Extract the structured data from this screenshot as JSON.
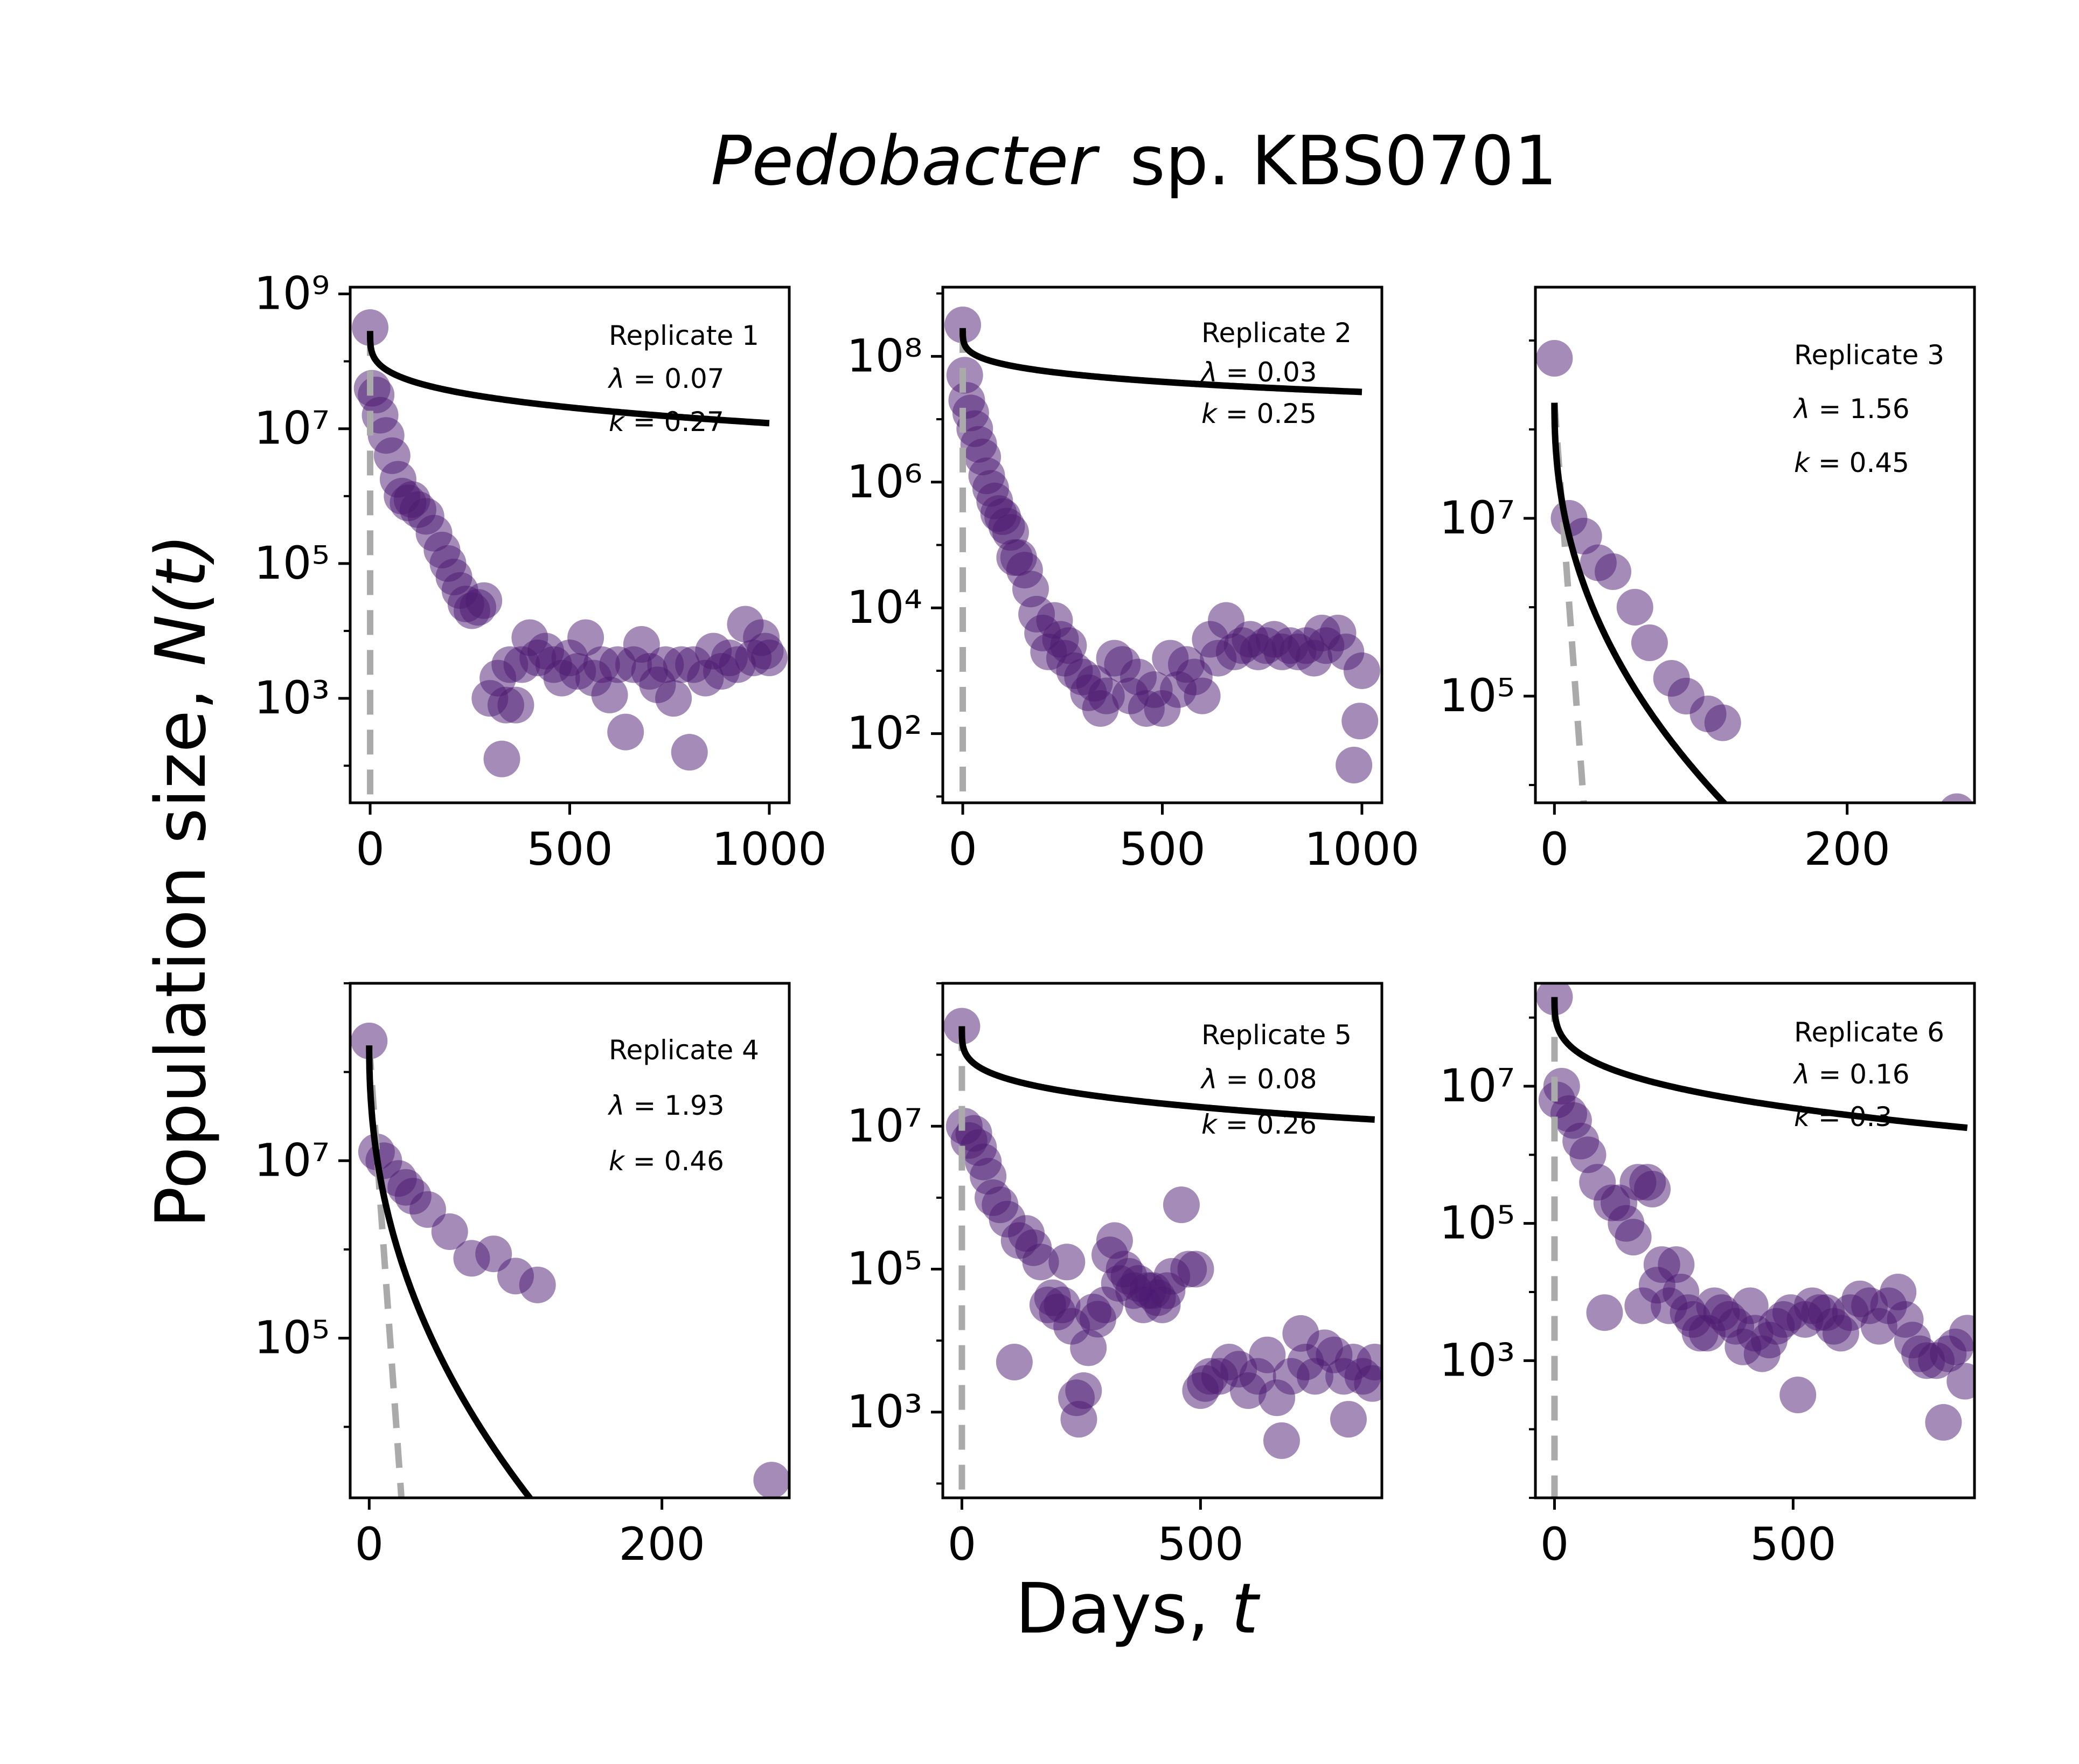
{
  "figure": {
    "title_italic": "Pedobacter",
    "title_rest": "sp. KBS0701",
    "ylabel_text": "Population size, ",
    "ylabel_var": "N(t)",
    "xlabel_text": "Days, ",
    "xlabel_var": "t"
  },
  "colors": {
    "points": "#4b1a72",
    "fit": "#000000",
    "expected": "#aaaaaa",
    "axes": "#000000"
  },
  "chart_data": [
    {
      "type": "scatter",
      "replicate": "Replicate 1",
      "lambda": "0.07",
      "k": "0.27",
      "xlim": [
        -50,
        1050
      ],
      "ylog": true,
      "ylim_log10": [
        1.45,
        9.1
      ],
      "xticks": [
        0,
        500,
        1000
      ],
      "yticks_exp": [
        3,
        5,
        7,
        9
      ],
      "fit": {
        "log10_N0": 8.45,
        "lambda": 0.07,
        "k": 0.27,
        "x_max": 1000
      },
      "expected": {
        "log10_N0": 8.45,
        "x_end": 0,
        "log10_end": 1.5
      },
      "points": [
        [
          0,
          8.5
        ],
        [
          5,
          7.6
        ],
        [
          15,
          7.5
        ],
        [
          25,
          7.2
        ],
        [
          40,
          6.9
        ],
        [
          55,
          6.6
        ],
        [
          70,
          6.25
        ],
        [
          80,
          6.0
        ],
        [
          95,
          5.9
        ],
        [
          105,
          5.95
        ],
        [
          120,
          5.8
        ],
        [
          140,
          5.7
        ],
        [
          160,
          5.45
        ],
        [
          180,
          5.2
        ],
        [
          195,
          5.0
        ],
        [
          210,
          4.8
        ],
        [
          225,
          4.6
        ],
        [
          240,
          4.4
        ],
        [
          255,
          4.3
        ],
        [
          270,
          4.35
        ],
        [
          285,
          4.45
        ],
        [
          300,
          3.0
        ],
        [
          320,
          3.3
        ],
        [
          330,
          2.1
        ],
        [
          340,
          2.9
        ],
        [
          350,
          3.5
        ],
        [
          365,
          2.9
        ],
        [
          380,
          3.5
        ],
        [
          400,
          3.9
        ],
        [
          420,
          3.6
        ],
        [
          440,
          3.7
        ],
        [
          460,
          3.5
        ],
        [
          480,
          3.3
        ],
        [
          500,
          3.6
        ],
        [
          520,
          3.4
        ],
        [
          540,
          3.9
        ],
        [
          560,
          3.3
        ],
        [
          580,
          3.5
        ],
        [
          600,
          3.05
        ],
        [
          620,
          3.5
        ],
        [
          640,
          2.5
        ],
        [
          660,
          3.5
        ],
        [
          680,
          3.8
        ],
        [
          700,
          3.4
        ],
        [
          720,
          3.2
        ],
        [
          740,
          3.5
        ],
        [
          760,
          3.0
        ],
        [
          780,
          3.5
        ],
        [
          800,
          2.2
        ],
        [
          810,
          3.5
        ],
        [
          840,
          3.3
        ],
        [
          860,
          3.7
        ],
        [
          880,
          3.4
        ],
        [
          900,
          3.6
        ],
        [
          920,
          3.5
        ],
        [
          940,
          4.1
        ],
        [
          960,
          3.6
        ],
        [
          980,
          3.9
        ],
        [
          990,
          3.7
        ],
        [
          1000,
          3.6
        ]
      ]
    },
    {
      "type": "scatter",
      "replicate": "Replicate 2",
      "lambda": "0.03",
      "k": "0.25",
      "xlim": [
        -50,
        1050
      ],
      "ylog": true,
      "ylim_log10": [
        0.9,
        9.1
      ],
      "xticks": [
        0,
        500,
        1000
      ],
      "yticks_exp": [
        2,
        4,
        6,
        8
      ],
      "fit": {
        "log10_N0": 8.45,
        "lambda": 0.03,
        "k": 0.25,
        "x_max": 1000
      },
      "expected": {
        "log10_N0": 8.45,
        "x_end": 0,
        "log10_end": 0.9
      },
      "points": [
        [
          0,
          8.5
        ],
        [
          5,
          7.7
        ],
        [
          10,
          7.3
        ],
        [
          20,
          7.1
        ],
        [
          30,
          6.85
        ],
        [
          40,
          6.6
        ],
        [
          50,
          6.4
        ],
        [
          60,
          6.1
        ],
        [
          70,
          5.9
        ],
        [
          80,
          5.7
        ],
        [
          90,
          5.5
        ],
        [
          100,
          5.45
        ],
        [
          110,
          5.3
        ],
        [
          120,
          5.2
        ],
        [
          130,
          4.8
        ],
        [
          140,
          4.8
        ],
        [
          155,
          4.6
        ],
        [
          170,
          4.3
        ],
        [
          185,
          3.9
        ],
        [
          200,
          3.6
        ],
        [
          215,
          3.3
        ],
        [
          230,
          3.8
        ],
        [
          245,
          3.5
        ],
        [
          255,
          3.2
        ],
        [
          265,
          3.4
        ],
        [
          280,
          3.0
        ],
        [
          300,
          2.9
        ],
        [
          315,
          2.65
        ],
        [
          330,
          2.8
        ],
        [
          345,
          2.4
        ],
        [
          360,
          2.6
        ],
        [
          380,
          3.2
        ],
        [
          400,
          3.1
        ],
        [
          420,
          2.6
        ],
        [
          440,
          2.9
        ],
        [
          460,
          2.4
        ],
        [
          480,
          2.7
        ],
        [
          500,
          2.4
        ],
        [
          520,
          3.2
        ],
        [
          540,
          2.7
        ],
        [
          560,
          3.1
        ],
        [
          580,
          2.9
        ],
        [
          600,
          2.6
        ],
        [
          620,
          3.5
        ],
        [
          640,
          3.2
        ],
        [
          660,
          3.8
        ],
        [
          680,
          3.3
        ],
        [
          700,
          3.4
        ],
        [
          720,
          3.5
        ],
        [
          740,
          3.3
        ],
        [
          760,
          3.4
        ],
        [
          780,
          3.5
        ],
        [
          800,
          3.3
        ],
        [
          820,
          3.4
        ],
        [
          840,
          3.3
        ],
        [
          860,
          3.4
        ],
        [
          880,
          3.2
        ],
        [
          900,
          3.6
        ],
        [
          910,
          3.4
        ],
        [
          940,
          3.6
        ],
        [
          960,
          3.3
        ],
        [
          980,
          1.5
        ],
        [
          995,
          2.2
        ],
        [
          1000,
          3.0
        ]
      ]
    },
    {
      "type": "scatter",
      "replicate": "Replicate 3",
      "lambda": "1.56",
      "k": "0.45",
      "xlim": [
        -13,
        287
      ],
      "ylog": true,
      "ylim_log10": [
        3.8,
        9.6
      ],
      "xticks": [
        0,
        200
      ],
      "yticks_exp": [
        5,
        7
      ],
      "fit": {
        "log10_N0": 8.3,
        "lambda": 1.56,
        "k": 0.45,
        "x_max": 275
      },
      "expected": {
        "log10_N0": 8.3,
        "x_end": 20,
        "log10_end": 3.8
      },
      "points": [
        [
          0,
          8.8
        ],
        [
          10,
          7.0
        ],
        [
          20,
          6.8
        ],
        [
          30,
          6.5
        ],
        [
          40,
          6.4
        ],
        [
          55,
          6.0
        ],
        [
          65,
          5.6
        ],
        [
          80,
          5.2
        ],
        [
          90,
          5.0
        ],
        [
          105,
          4.8
        ],
        [
          115,
          4.7
        ],
        [
          275,
          3.7
        ]
      ]
    },
    {
      "type": "scatter",
      "replicate": "Replicate 4",
      "lambda": "1.93",
      "k": "0.46",
      "xlim": [
        -13,
        287
      ],
      "ylog": true,
      "ylim_log10": [
        3.2,
        9.0
      ],
      "xticks": [
        0,
        200
      ],
      "yticks_exp": [
        5,
        7
      ],
      "fit": {
        "log10_N0": 8.3,
        "lambda": 1.93,
        "k": 0.46,
        "x_max": 275
      },
      "expected": {
        "log10_N0": 8.3,
        "x_end": 22,
        "log10_end": 3.2
      },
      "points": [
        [
          0,
          8.35
        ],
        [
          5,
          7.1
        ],
        [
          10,
          7.0
        ],
        [
          20,
          6.8
        ],
        [
          25,
          6.7
        ],
        [
          30,
          6.6
        ],
        [
          40,
          6.45
        ],
        [
          55,
          6.2
        ],
        [
          70,
          5.9
        ],
        [
          85,
          5.95
        ],
        [
          100,
          5.7
        ],
        [
          115,
          5.6
        ],
        [
          275,
          3.4
        ]
      ]
    },
    {
      "type": "scatter",
      "replicate": "Replicate 5",
      "lambda": "0.08",
      "k": "0.26",
      "xlim": [
        -40,
        880
      ],
      "ylog": true,
      "ylim_log10": [
        1.8,
        9.0
      ],
      "xticks": [
        0,
        500
      ],
      "yticks_exp": [
        3,
        5,
        7
      ],
      "fit": {
        "log10_N0": 8.4,
        "lambda": 0.08,
        "k": 0.26,
        "x_max": 865
      },
      "expected": {
        "log10_N0": 8.4,
        "x_end": 0,
        "log10_end": 1.8
      },
      "points": [
        [
          0,
          8.4
        ],
        [
          5,
          7.0
        ],
        [
          15,
          6.8
        ],
        [
          25,
          6.9
        ],
        [
          35,
          6.7
        ],
        [
          45,
          6.5
        ],
        [
          55,
          6.3
        ],
        [
          65,
          6.0
        ],
        [
          80,
          5.9
        ],
        [
          95,
          5.7
        ],
        [
          110,
          3.7
        ],
        [
          120,
          5.4
        ],
        [
          135,
          5.5
        ],
        [
          150,
          5.3
        ],
        [
          165,
          5.1
        ],
        [
          180,
          4.5
        ],
        [
          190,
          4.6
        ],
        [
          200,
          4.4
        ],
        [
          210,
          4.5
        ],
        [
          220,
          5.1
        ],
        [
          230,
          4.2
        ],
        [
          240,
          3.2
        ],
        [
          245,
          2.9
        ],
        [
          255,
          3.3
        ],
        [
          265,
          3.9
        ],
        [
          275,
          4.4
        ],
        [
          285,
          4.3
        ],
        [
          300,
          4.5
        ],
        [
          310,
          5.2
        ],
        [
          320,
          5.4
        ],
        [
          330,
          4.8
        ],
        [
          340,
          5.0
        ],
        [
          350,
          4.9
        ],
        [
          360,
          4.7
        ],
        [
          370,
          4.8
        ],
        [
          380,
          4.5
        ],
        [
          390,
          4.7
        ],
        [
          400,
          4.7
        ],
        [
          410,
          4.6
        ],
        [
          420,
          4.5
        ],
        [
          430,
          4.7
        ],
        [
          440,
          4.9
        ],
        [
          460,
          5.9
        ],
        [
          475,
          5.0
        ],
        [
          490,
          5.0
        ],
        [
          500,
          3.3
        ],
        [
          510,
          3.4
        ],
        [
          520,
          3.5
        ],
        [
          540,
          3.5
        ],
        [
          560,
          3.7
        ],
        [
          580,
          3.6
        ],
        [
          600,
          3.3
        ],
        [
          620,
          3.5
        ],
        [
          640,
          3.8
        ],
        [
          660,
          3.2
        ],
        [
          670,
          2.6
        ],
        [
          690,
          3.5
        ],
        [
          710,
          4.1
        ],
        [
          720,
          3.7
        ],
        [
          740,
          3.5
        ],
        [
          760,
          3.9
        ],
        [
          780,
          3.8
        ],
        [
          800,
          3.5
        ],
        [
          810,
          2.9
        ],
        [
          820,
          3.7
        ],
        [
          840,
          3.5
        ],
        [
          860,
          3.4
        ],
        [
          865,
          3.7
        ]
      ]
    },
    {
      "type": "scatter",
      "replicate": "Replicate 6",
      "lambda": "0.16",
      "k": "0.3",
      "xlim": [
        -40,
        880
      ],
      "ylog": true,
      "ylim_log10": [
        1.0,
        8.5
      ],
      "xticks": [
        0,
        500
      ],
      "yticks_exp": [
        3,
        5,
        7
      ],
      "fit": {
        "log10_N0": 8.3,
        "lambda": 0.16,
        "k": 0.3,
        "x_max": 865
      },
      "expected": {
        "log10_N0": 8.3,
        "x_end": 0,
        "log10_end": 1.0
      },
      "points": [
        [
          0,
          8.3
        ],
        [
          5,
          6.8
        ],
        [
          15,
          7.0
        ],
        [
          30,
          6.6
        ],
        [
          40,
          6.5
        ],
        [
          55,
          6.2
        ],
        [
          70,
          6.0
        ],
        [
          90,
          5.6
        ],
        [
          105,
          3.7
        ],
        [
          120,
          5.3
        ],
        [
          135,
          5.3
        ],
        [
          150,
          5.0
        ],
        [
          165,
          4.8
        ],
        [
          175,
          5.6
        ],
        [
          185,
          3.8
        ],
        [
          195,
          5.6
        ],
        [
          205,
          5.5
        ],
        [
          215,
          4.1
        ],
        [
          225,
          4.4
        ],
        [
          240,
          3.8
        ],
        [
          255,
          4.4
        ],
        [
          265,
          4.0
        ],
        [
          280,
          3.7
        ],
        [
          290,
          3.6
        ],
        [
          305,
          3.4
        ],
        [
          320,
          3.4
        ],
        [
          335,
          3.8
        ],
        [
          350,
          3.7
        ],
        [
          365,
          3.6
        ],
        [
          380,
          3.5
        ],
        [
          395,
          3.2
        ],
        [
          410,
          3.8
        ],
        [
          420,
          3.4
        ],
        [
          435,
          3.1
        ],
        [
          450,
          3.3
        ],
        [
          465,
          3.5
        ],
        [
          480,
          3.6
        ],
        [
          495,
          3.7
        ],
        [
          510,
          2.5
        ],
        [
          525,
          3.6
        ],
        [
          540,
          3.8
        ],
        [
          555,
          3.7
        ],
        [
          570,
          3.7
        ],
        [
          585,
          3.5
        ],
        [
          600,
          3.4
        ],
        [
          620,
          3.7
        ],
        [
          640,
          3.9
        ],
        [
          660,
          3.8
        ],
        [
          680,
          3.5
        ],
        [
          700,
          3.8
        ],
        [
          720,
          4.0
        ],
        [
          735,
          3.6
        ],
        [
          750,
          3.3
        ],
        [
          765,
          3.1
        ],
        [
          780,
          3.0
        ],
        [
          800,
          3.0
        ],
        [
          815,
          2.1
        ],
        [
          825,
          3.1
        ],
        [
          840,
          3.2
        ],
        [
          860,
          2.7
        ],
        [
          865,
          3.4
        ]
      ]
    }
  ]
}
